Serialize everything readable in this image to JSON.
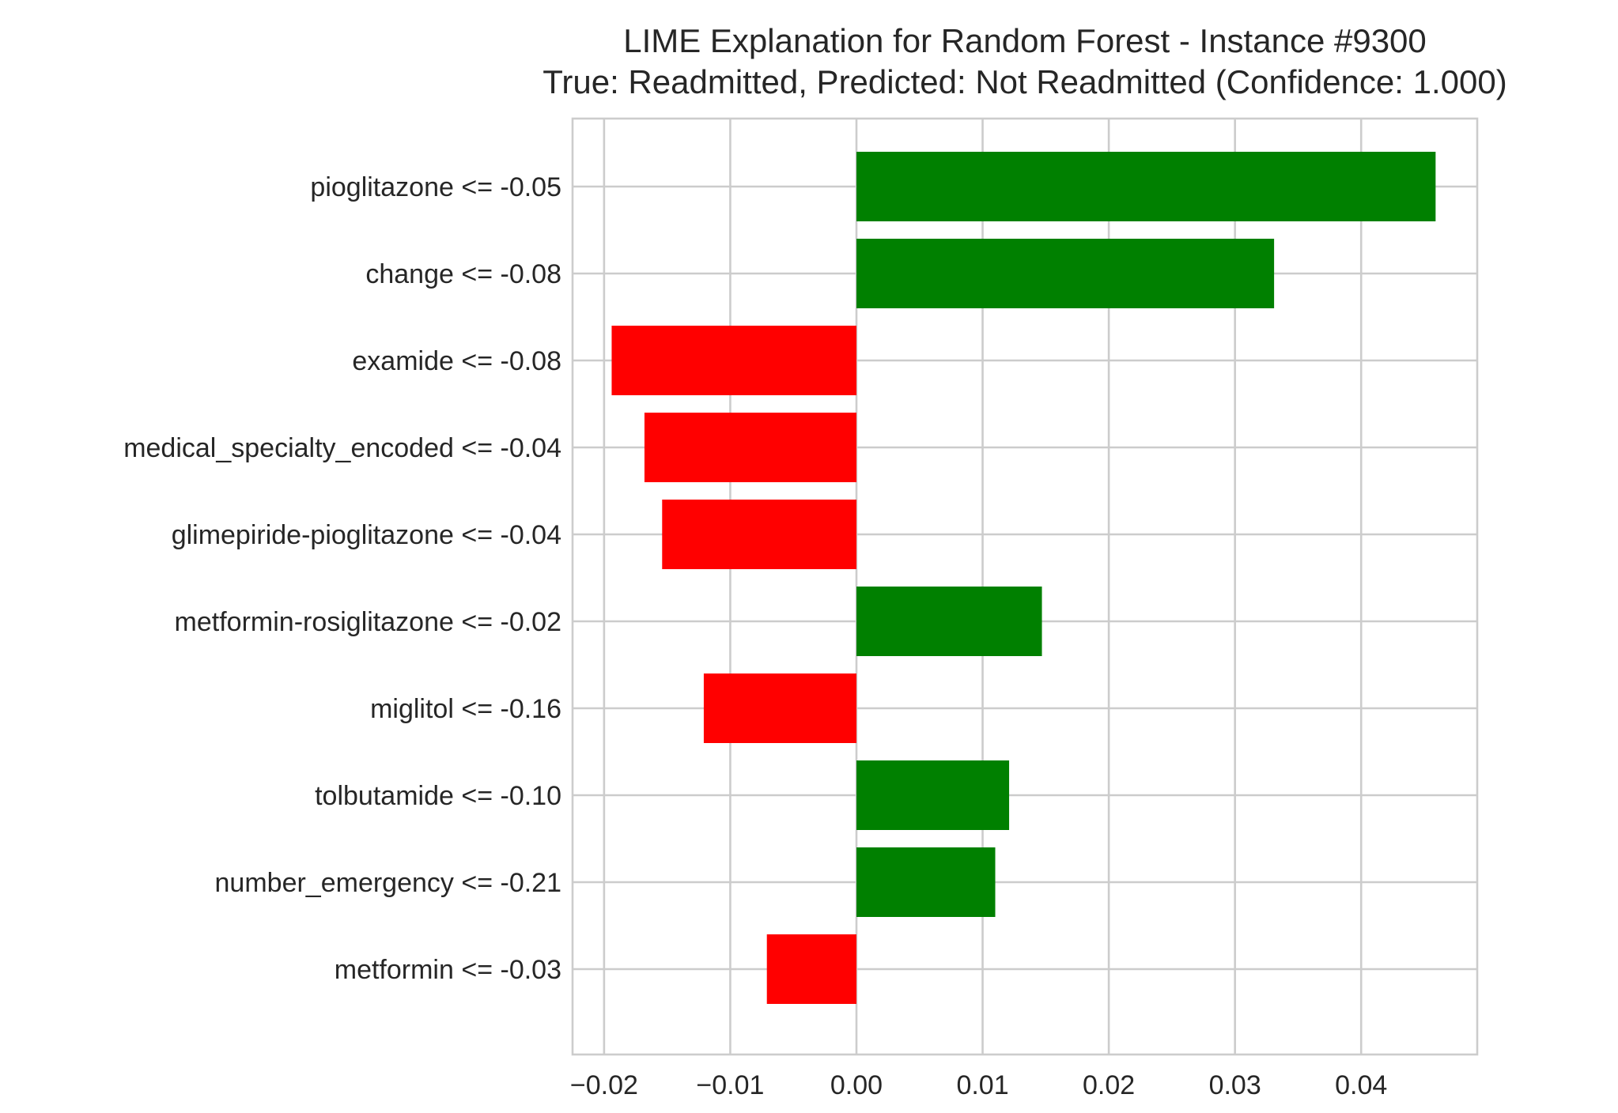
{
  "chart_data": {
    "type": "bar",
    "orientation": "horizontal",
    "title_line1": "LIME Explanation for Random Forest - Instance #9300",
    "title_line2": "True: Readmitted, Predicted: Not Readmitted (Confidence: 1.000)",
    "xlabel": "",
    "ylabel": "",
    "xlim": [
      -0.0225,
      0.0492
    ],
    "grid": true,
    "x_ticks": [
      -0.02,
      -0.01,
      0.0,
      0.01,
      0.02,
      0.03,
      0.04
    ],
    "x_tick_labels": [
      "−0.02",
      "−0.01",
      "0.00",
      "0.01",
      "0.02",
      "0.03",
      "0.04"
    ],
    "positive_color": "#008000",
    "negative_color": "#ff0000",
    "categories": [
      "pioglitazone <= -0.05",
      "change <= -0.08",
      "examide <= -0.08",
      "medical_specialty_encoded <= -0.04",
      "glimepiride-pioglitazone <= -0.04",
      "metformin-rosiglitazone <= -0.02",
      "miglitol <= -0.16",
      "tolbutamide <= -0.10",
      "number_emergency <= -0.21",
      "metformin <= -0.03"
    ],
    "values": [
      0.0459,
      0.0331,
      -0.0194,
      -0.0168,
      -0.0154,
      0.0147,
      -0.0121,
      0.0121,
      0.011,
      -0.0071
    ]
  }
}
